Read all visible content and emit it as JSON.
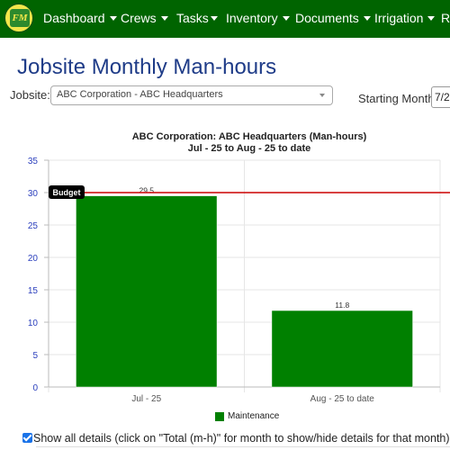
{
  "nav": {
    "logo_text": "FM",
    "items": [
      {
        "label": "Dashboard",
        "dropdown": true
      },
      {
        "label": "Crews",
        "dropdown": true
      },
      {
        "label": "Tasks",
        "dropdown": true
      },
      {
        "label": "Inventory",
        "dropdown": true
      },
      {
        "label": "Documents",
        "dropdown": true
      },
      {
        "label": "Irrigation",
        "dropdown": true
      },
      {
        "label": "Re",
        "dropdown": false
      }
    ]
  },
  "page": {
    "title": "Jobsite Monthly Man-hours"
  },
  "filters": {
    "jobsite_label": "Jobsite:",
    "jobsite_value": "ABC Corporation - ABC Headquarters",
    "starting_month_label": "Starting Month:",
    "starting_month_value": "7/2"
  },
  "chart_data": {
    "type": "bar",
    "title": "ABC Corporation:  ABC Headquarters (Man-hours)",
    "subtitle": "Jul - 25 to Aug - 25 to date",
    "categories": [
      "Jul - 25",
      "Aug - 25 to date"
    ],
    "series": [
      {
        "name": "Maintenance",
        "values": [
          29.5,
          11.8
        ],
        "color": "#008000"
      }
    ],
    "data_labels": [
      "29.5",
      "11.8"
    ],
    "ylim": [
      0,
      35
    ],
    "yticks": [
      0,
      5,
      10,
      15,
      20,
      25,
      30,
      35
    ],
    "budget": {
      "label": "Budget",
      "value": 30,
      "color": "#cc0000"
    },
    "grid": true,
    "legend_position": "bottom"
  },
  "details": {
    "checked": true,
    "label": "Show all details (click on \"Total (m-h)\" for month to show/hide details for that month)"
  }
}
